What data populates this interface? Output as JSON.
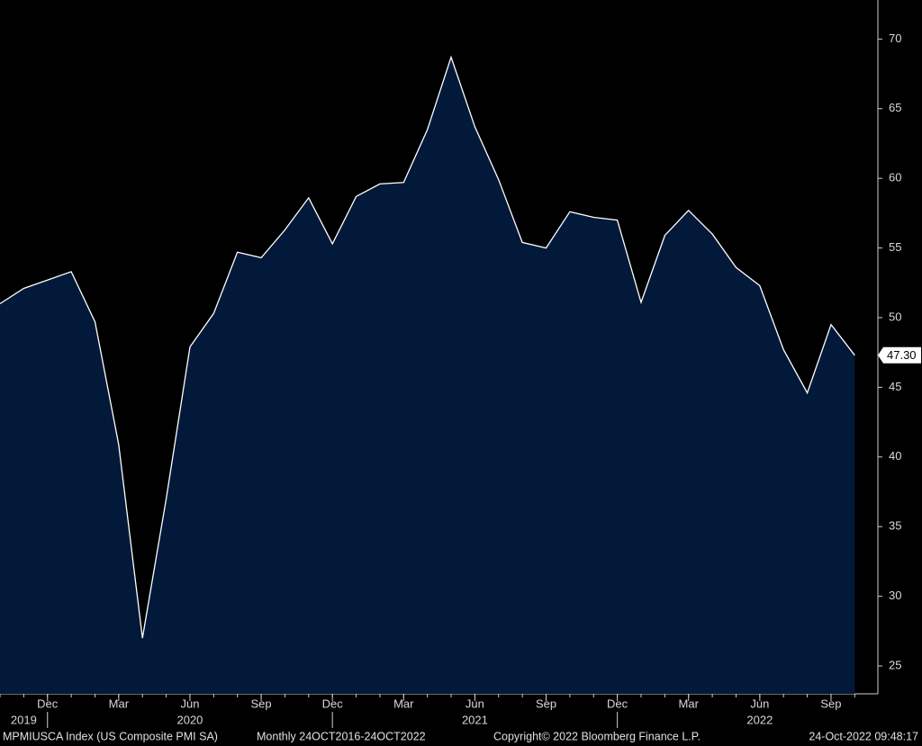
{
  "chart_data": {
    "type": "area",
    "x": [
      "2019-10",
      "2019-11",
      "2019-12",
      "2020-01",
      "2020-02",
      "2020-03",
      "2020-04",
      "2020-05",
      "2020-06",
      "2020-07",
      "2020-08",
      "2020-09",
      "2020-10",
      "2020-11",
      "2020-12",
      "2021-01",
      "2021-02",
      "2021-03",
      "2021-04",
      "2021-05",
      "2021-06",
      "2021-07",
      "2021-08",
      "2021-09",
      "2021-10",
      "2021-11",
      "2021-12",
      "2022-01",
      "2022-02",
      "2022-03",
      "2022-04",
      "2022-05",
      "2022-06",
      "2022-07",
      "2022-08",
      "2022-09",
      "2022-10"
    ],
    "series": [
      {
        "name": "MPMIUSCA Index (US Composite PMI SA)",
        "color": "#ffffff",
        "fill": "#03193a",
        "values": [
          51.0,
          52.1,
          52.7,
          53.3,
          49.7,
          40.9,
          27.0,
          37.0,
          47.9,
          50.3,
          54.7,
          54.3,
          56.3,
          58.6,
          55.3,
          58.7,
          59.6,
          59.7,
          63.5,
          68.7,
          63.7,
          59.9,
          55.4,
          55.0,
          57.6,
          57.2,
          57.0,
          51.1,
          55.9,
          57.7,
          56.0,
          53.6,
          52.3,
          47.7,
          44.6,
          49.5,
          47.3
        ],
        "value_labels": [
          null,
          null,
          null,
          null,
          null,
          null,
          null,
          null,
          null,
          null,
          null,
          null,
          null,
          null,
          null,
          null,
          null,
          null,
          null,
          null,
          null,
          null,
          null,
          null,
          null,
          null,
          null,
          null,
          null,
          null,
          null,
          null,
          null,
          null,
          null,
          null,
          "47.30"
        ]
      }
    ],
    "ylim": [
      23,
      72.8
    ],
    "yticks": [
      25,
      30,
      35,
      40,
      45,
      50,
      55,
      60,
      65,
      70
    ],
    "xticks": [
      {
        "value": "2019-12",
        "label": "Dec"
      },
      {
        "value": "2020-03",
        "label": "Mar"
      },
      {
        "value": "2020-06",
        "label": "Jun"
      },
      {
        "value": "2020-09",
        "label": "Sep"
      },
      {
        "value": "2020-12",
        "label": "Dec"
      },
      {
        "value": "2021-03",
        "label": "Mar"
      },
      {
        "value": "2021-06",
        "label": "Jun"
      },
      {
        "value": "2021-09",
        "label": "Sep"
      },
      {
        "value": "2021-12",
        "label": "Dec"
      },
      {
        "value": "2022-03",
        "label": "Mar"
      },
      {
        "value": "2022-06",
        "label": "Jun"
      },
      {
        "value": "2022-09",
        "label": "Sep"
      }
    ],
    "year_labels": [
      {
        "value": "2019-11",
        "label": "2019"
      },
      {
        "value": "2020-06",
        "label": "2020"
      },
      {
        "value": "2021-06",
        "label": "2021"
      },
      {
        "value": "2022-06",
        "label": "2022"
      }
    ],
    "footer": {
      "ticker": "MPMIUSCA Index (US Composite PMI SA)",
      "range": "Monthly 24OCT2016-24OCT2022",
      "copyright": "Copyright© 2022 Bloomberg Finance L.P.",
      "timestamp": "24-Oct-2022 09:48:17"
    }
  }
}
